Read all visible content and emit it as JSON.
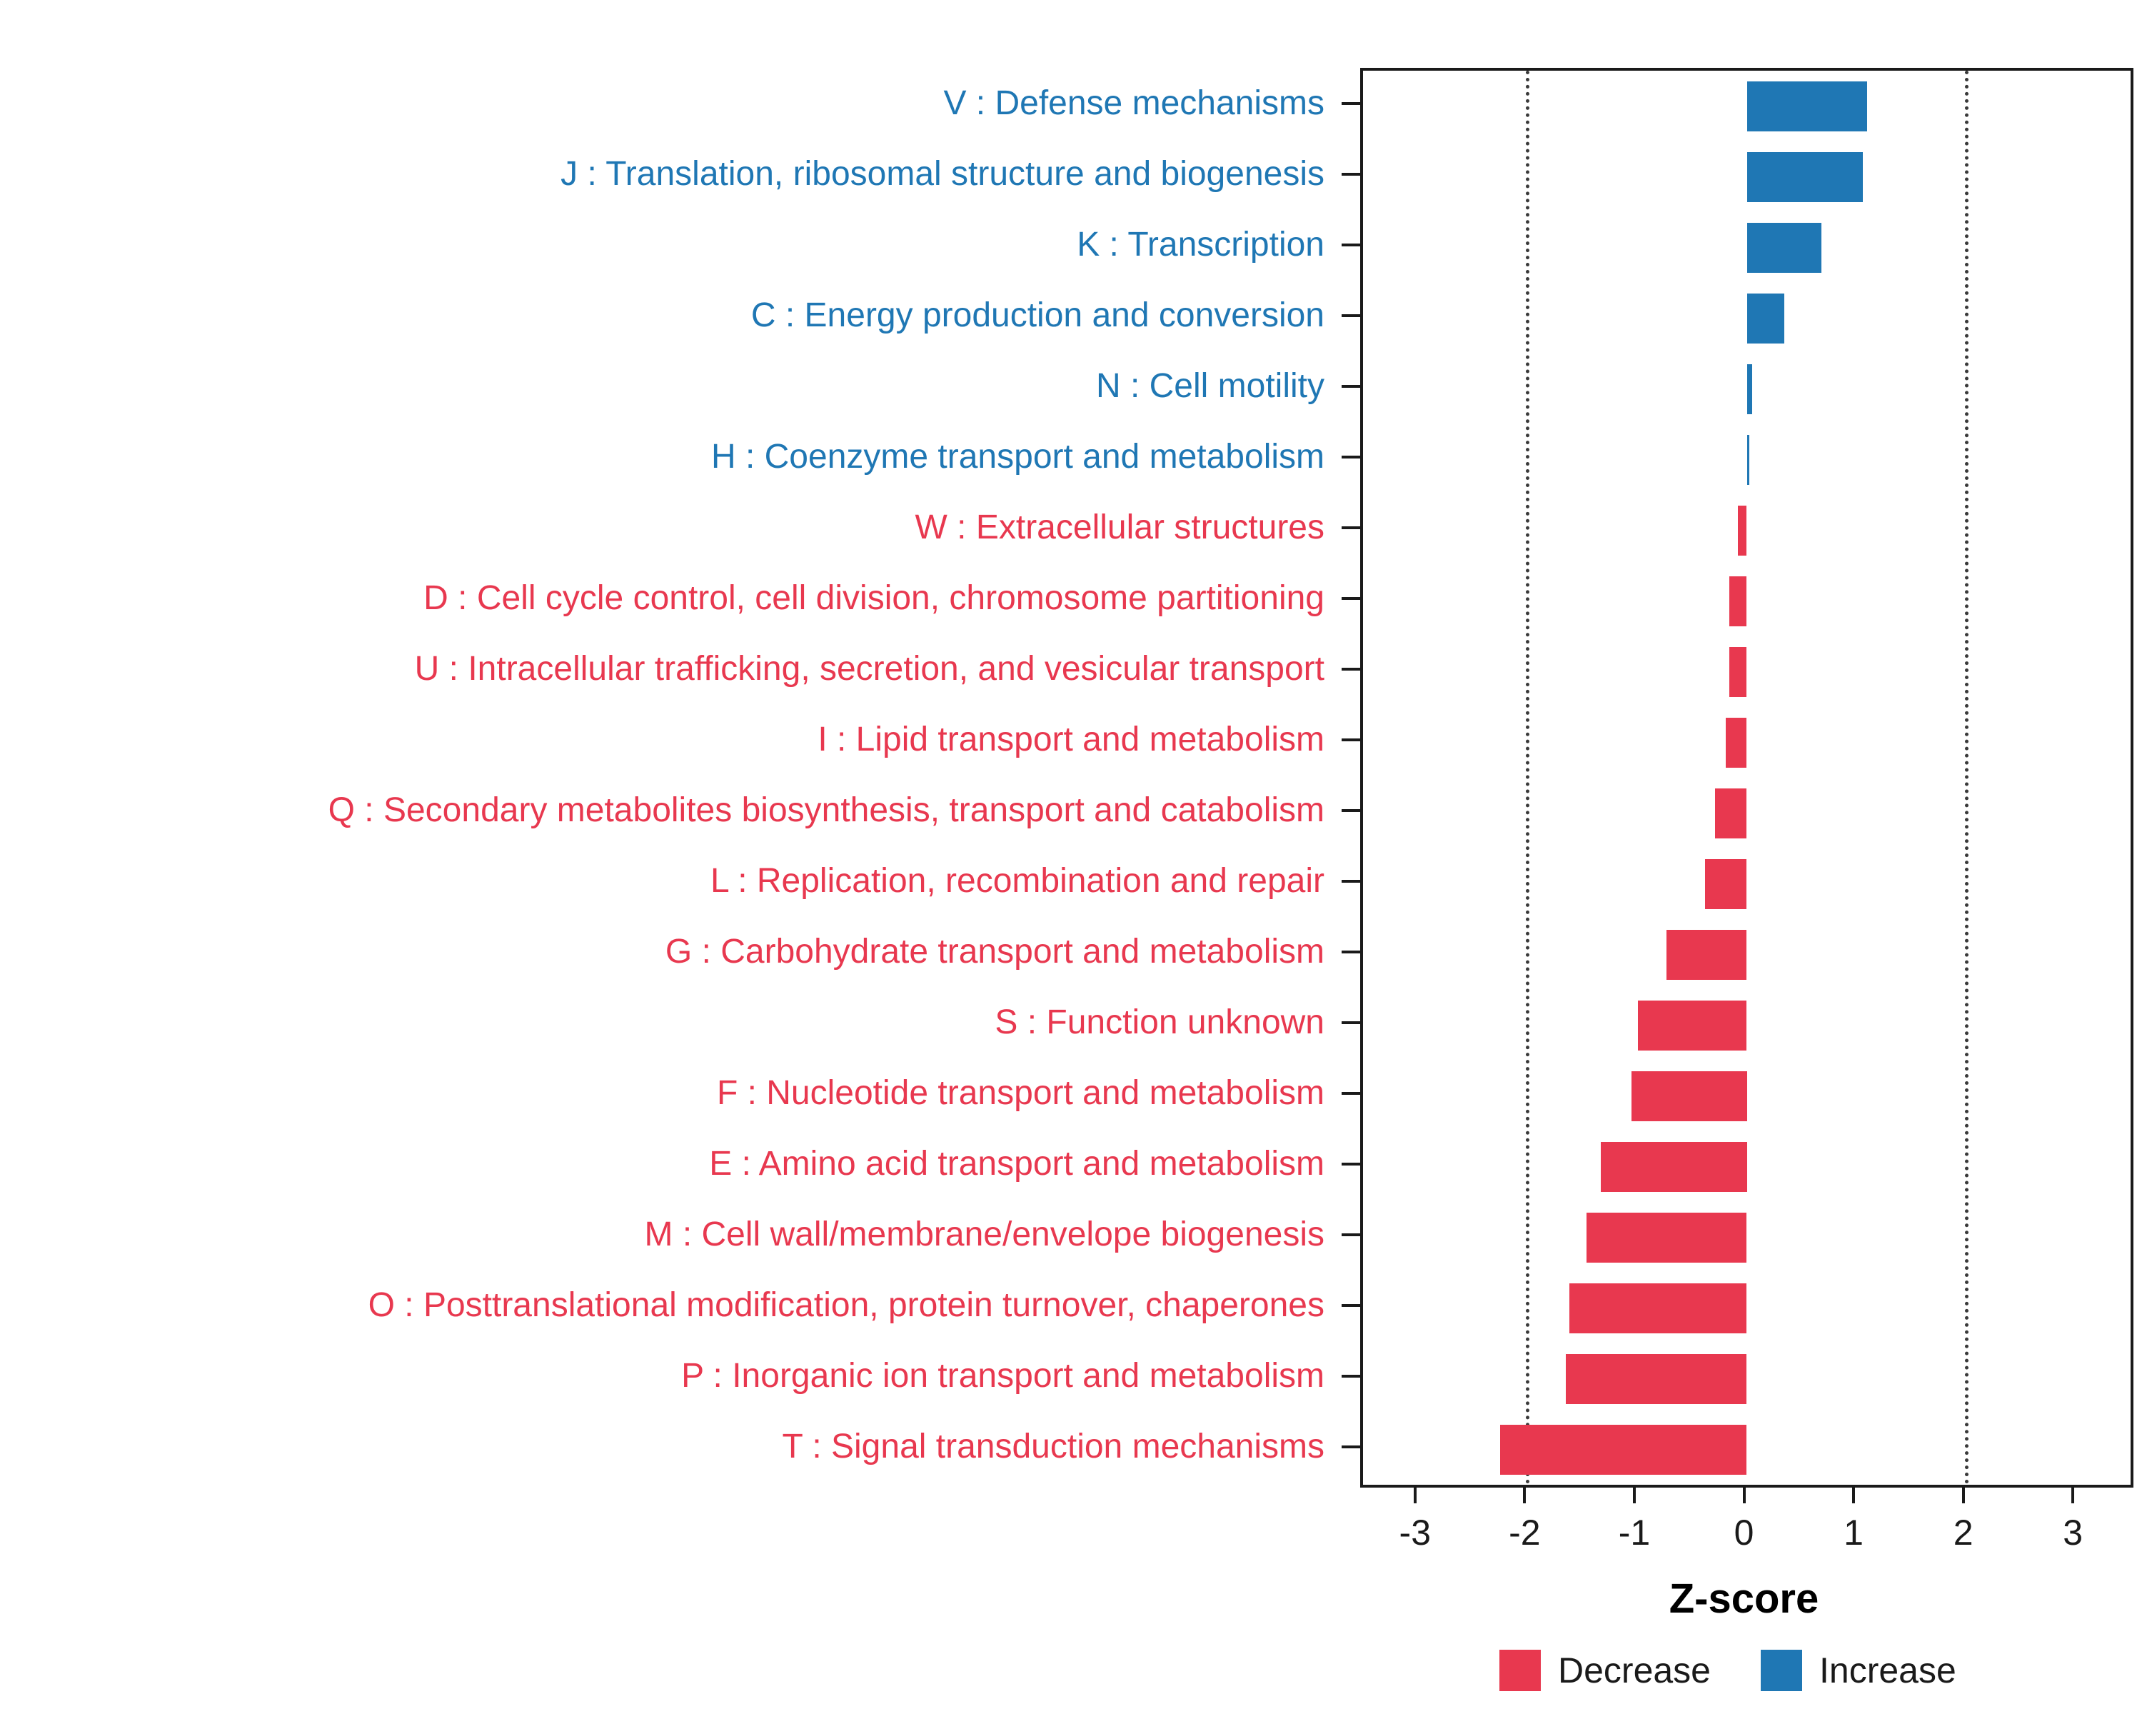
{
  "chart_data": {
    "type": "bar",
    "orientation": "horizontal",
    "title": "",
    "xlabel": "Z-score",
    "ylabel": "",
    "xlim": [
      -3.5,
      3.5
    ],
    "xticks": [
      -3,
      -2,
      -1,
      0,
      1,
      2,
      3
    ],
    "grid": "dotted vertical lines",
    "gridlines_at": [
      -2,
      2
    ],
    "legend_position": "bottom",
    "colors": {
      "Decrease": "#E8384F",
      "Increase": "#1F77B4"
    },
    "legend": [
      {
        "label": "Decrease",
        "group": "Decrease"
      },
      {
        "label": "Increase",
        "group": "Increase"
      }
    ],
    "categories": [
      {
        "label": "V : Defense mechanisms",
        "value": 1.1,
        "group": "Increase"
      },
      {
        "label": "J : Translation, ribosomal structure and biogenesis",
        "value": 1.06,
        "group": "Increase"
      },
      {
        "label": "K : Transcription",
        "value": 0.68,
        "group": "Increase"
      },
      {
        "label": "C : Energy production and conversion",
        "value": 0.34,
        "group": "Increase"
      },
      {
        "label": "N : Cell motility",
        "value": 0.05,
        "group": "Increase"
      },
      {
        "label": "H : Coenzyme transport and metabolism",
        "value": 0.02,
        "group": "Increase"
      },
      {
        "label": "W : Extracellular structures",
        "value": -0.08,
        "group": "Decrease"
      },
      {
        "label": "D : Cell cycle control, cell division, chromosome partitioning",
        "value": -0.16,
        "group": "Decrease"
      },
      {
        "label": "U : Intracellular trafficking, secretion, and vesicular transport",
        "value": -0.16,
        "group": "Decrease"
      },
      {
        "label": "I : Lipid transport and metabolism",
        "value": -0.19,
        "group": "Decrease"
      },
      {
        "label": "Q : Secondary metabolites biosynthesis, transport and catabolism",
        "value": -0.29,
        "group": "Decrease"
      },
      {
        "label": "L : Replication, recombination and repair",
        "value": -0.38,
        "group": "Decrease"
      },
      {
        "label": "G : Carbohydrate transport and metabolism",
        "value": -0.73,
        "group": "Decrease"
      },
      {
        "label": "S : Function unknown",
        "value": -0.99,
        "group": "Decrease"
      },
      {
        "label": "F : Nucleotide transport and metabolism",
        "value": -1.05,
        "group": "Decrease"
      },
      {
        "label": "E : Amino acid transport and metabolism",
        "value": -1.33,
        "group": "Decrease"
      },
      {
        "label": "M : Cell wall/membrane/envelope biogenesis",
        "value": -1.46,
        "group": "Decrease"
      },
      {
        "label": "O : Posttranslational modification, protein turnover, chaperones",
        "value": -1.62,
        "group": "Decrease"
      },
      {
        "label": "P : Inorganic ion transport and metabolism",
        "value": -1.65,
        "group": "Decrease"
      },
      {
        "label": "T : Signal transduction mechanisms",
        "value": -2.25,
        "group": "Decrease"
      }
    ]
  }
}
